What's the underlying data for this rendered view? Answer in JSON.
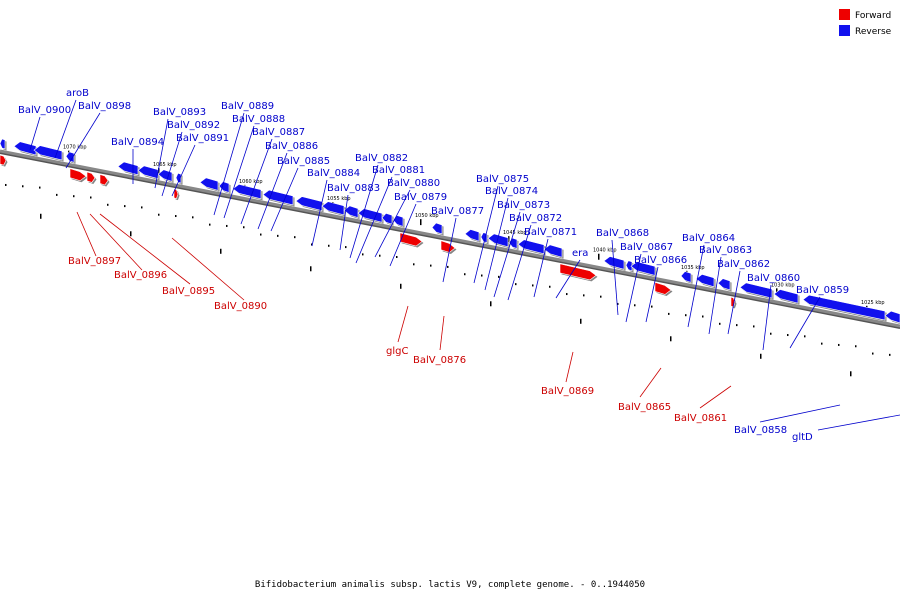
{
  "caption": "Bifidobacterium animalis subsp. lactis V9, complete genome. - 0..1944050",
  "legend": [
    {
      "label": "Forward",
      "color": "#ee0000"
    },
    {
      "label": "Reverse",
      "color": "#1111ee"
    }
  ],
  "colors": {
    "forward": "#ee0000",
    "reverse": "#1111ee",
    "backbone": "#888888"
  },
  "scale_labels": [
    "1070 kbp",
    "1065 kbp",
    "1060 kbp",
    "1055 kbp",
    "1050 kbp",
    "1045 kbp",
    "1040 kbp",
    "1035 kbp",
    "1030 kbp",
    "1025 kbp"
  ],
  "reverse_genes": [
    "BalV_0900",
    "aroB",
    "BalV_0898",
    "BalV_0894",
    "BalV_0893",
    "BalV_0892",
    "BalV_0891",
    "BalV_0889",
    "BalV_0888",
    "BalV_0887",
    "BalV_0886",
    "BalV_0885",
    "BalV_0884",
    "BalV_0883",
    "BalV_0882",
    "BalV_0881",
    "BalV_0880",
    "BalV_0879",
    "BalV_0877",
    "BalV_0875",
    "BalV_0874",
    "BalV_0873",
    "BalV_0872",
    "BalV_0871",
    "era",
    "BalV_0868",
    "BalV_0867",
    "BalV_0866",
    "BalV_0864",
    "BalV_0863",
    "BalV_0862",
    "BalV_0860",
    "BalV_0859",
    "BalV_0858",
    "gltD"
  ],
  "forward_genes": [
    "BalV_0897",
    "BalV_0896",
    "BalV_0895",
    "BalV_0890",
    "glgC",
    "BalV_0876",
    "BalV_0869",
    "BalV_0865",
    "BalV_0861"
  ]
}
